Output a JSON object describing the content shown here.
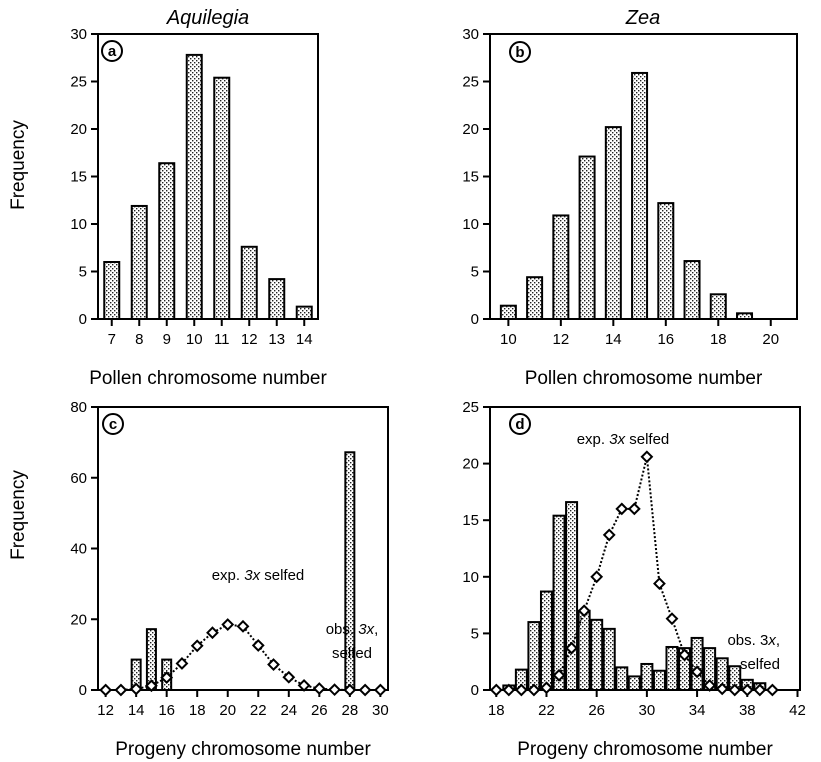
{
  "figure": {
    "ylabel_top": "Frequency",
    "ylabel_bottom": "Frequency"
  },
  "chart_data": [
    {
      "panel": "a",
      "type": "bar",
      "title": "Aquilegia",
      "xlabel": "Pollen chromosome number",
      "ylabel": "Frequency",
      "xlim": [
        6.5,
        14.5
      ],
      "ylim": [
        0,
        30
      ],
      "xticks": [
        7,
        8,
        9,
        10,
        11,
        12,
        13,
        14
      ],
      "yticks": [
        0,
        5,
        10,
        15,
        20,
        25,
        30
      ],
      "categories": [
        7,
        8,
        9,
        10,
        11,
        12,
        13,
        14
      ],
      "values": [
        6.0,
        11.9,
        16.4,
        27.8,
        25.4,
        7.6,
        4.2,
        1.3
      ],
      "annotations": []
    },
    {
      "panel": "b",
      "type": "bar",
      "title": "Zea",
      "xlabel": "Pollen chromosome number",
      "ylabel": "",
      "xlim": [
        9.3,
        21.0
      ],
      "ylim": [
        0,
        30
      ],
      "xticks": [
        10,
        12,
        14,
        16,
        18,
        20
      ],
      "yticks": [
        0,
        5,
        10,
        15,
        20,
        25,
        30
      ],
      "categories": [
        10,
        11,
        12,
        13,
        14,
        15,
        16,
        17,
        18,
        19
      ],
      "values": [
        1.4,
        4.4,
        10.9,
        17.1,
        20.2,
        25.9,
        12.2,
        6.1,
        2.6,
        0.6
      ],
      "annotations": []
    },
    {
      "panel": "c",
      "type": "bar",
      "title": "",
      "xlabel": "Progeny chromosome number",
      "ylabel": "Frequency",
      "xlim": [
        11.5,
        30.5
      ],
      "ylim": [
        0,
        80
      ],
      "xticks": [
        12,
        14,
        16,
        18,
        20,
        22,
        24,
        26,
        28,
        30
      ],
      "yticks": [
        0,
        20,
        40,
        60,
        80
      ],
      "categories": [
        14,
        15,
        16,
        28
      ],
      "values": [
        8.6,
        17.2,
        8.6,
        67.2
      ],
      "series": [
        {
          "name": "exp. 3x selfed",
          "type": "line",
          "x": [
            12,
            13,
            14,
            15,
            16,
            17,
            18,
            19,
            20,
            21,
            22,
            23,
            24,
            25,
            26,
            27,
            28,
            29,
            30
          ],
          "y": [
            0,
            0,
            0.3,
            1.2,
            3.5,
            7.5,
            12.5,
            16.2,
            18.5,
            18.0,
            12.6,
            7.2,
            3.6,
            1.3,
            0.4,
            0.1,
            0,
            0,
            0
          ]
        }
      ],
      "annotations": [
        {
          "parts": [
            "obs. ",
            "3x",
            ","
          ],
          "line2": "selfed"
        },
        {
          "parts": [
            "exp. ",
            "3x",
            " selfed"
          ]
        }
      ]
    },
    {
      "panel": "d",
      "type": "bar",
      "title": "",
      "xlabel": "Progeny chromosome number",
      "ylabel": "",
      "xlim": [
        17.5,
        42.2
      ],
      "ylim": [
        0,
        25
      ],
      "xticks": [
        18,
        22,
        26,
        30,
        34,
        38,
        42
      ],
      "yticks": [
        0,
        5,
        10,
        15,
        20,
        25
      ],
      "categories": [
        19,
        20,
        21,
        22,
        23,
        24,
        25,
        26,
        27,
        28,
        29,
        30,
        31,
        32,
        33,
        34,
        35,
        36,
        37,
        38,
        39
      ],
      "values": [
        0.4,
        1.8,
        6.0,
        8.7,
        15.4,
        16.6,
        7.0,
        6.2,
        5.4,
        2.0,
        1.2,
        2.3,
        1.7,
        3.8,
        3.7,
        4.6,
        3.7,
        2.8,
        2.1,
        0.9,
        0.6
      ],
      "series": [
        {
          "name": "exp. 3x selfed",
          "type": "line",
          "x": [
            18,
            19,
            20,
            21,
            22,
            23,
            24,
            25,
            26,
            27,
            28,
            29,
            30,
            31,
            32,
            33,
            34,
            35,
            36,
            37,
            38,
            39,
            40
          ],
          "y": [
            0,
            0,
            0,
            0,
            0.2,
            1.3,
            3.7,
            7.0,
            10.0,
            13.7,
            16.0,
            16.0,
            20.6,
            9.4,
            6.3,
            3.1,
            1.6,
            0.4,
            0.1,
            0,
            0,
            0,
            0
          ]
        }
      ],
      "annotations": [
        {
          "parts": [
            "exp. ",
            "3x",
            "  selfed"
          ]
        },
        {
          "parts": [
            "obs. 3",
            "x",
            ","
          ],
          "line2": "selfed"
        }
      ]
    }
  ]
}
